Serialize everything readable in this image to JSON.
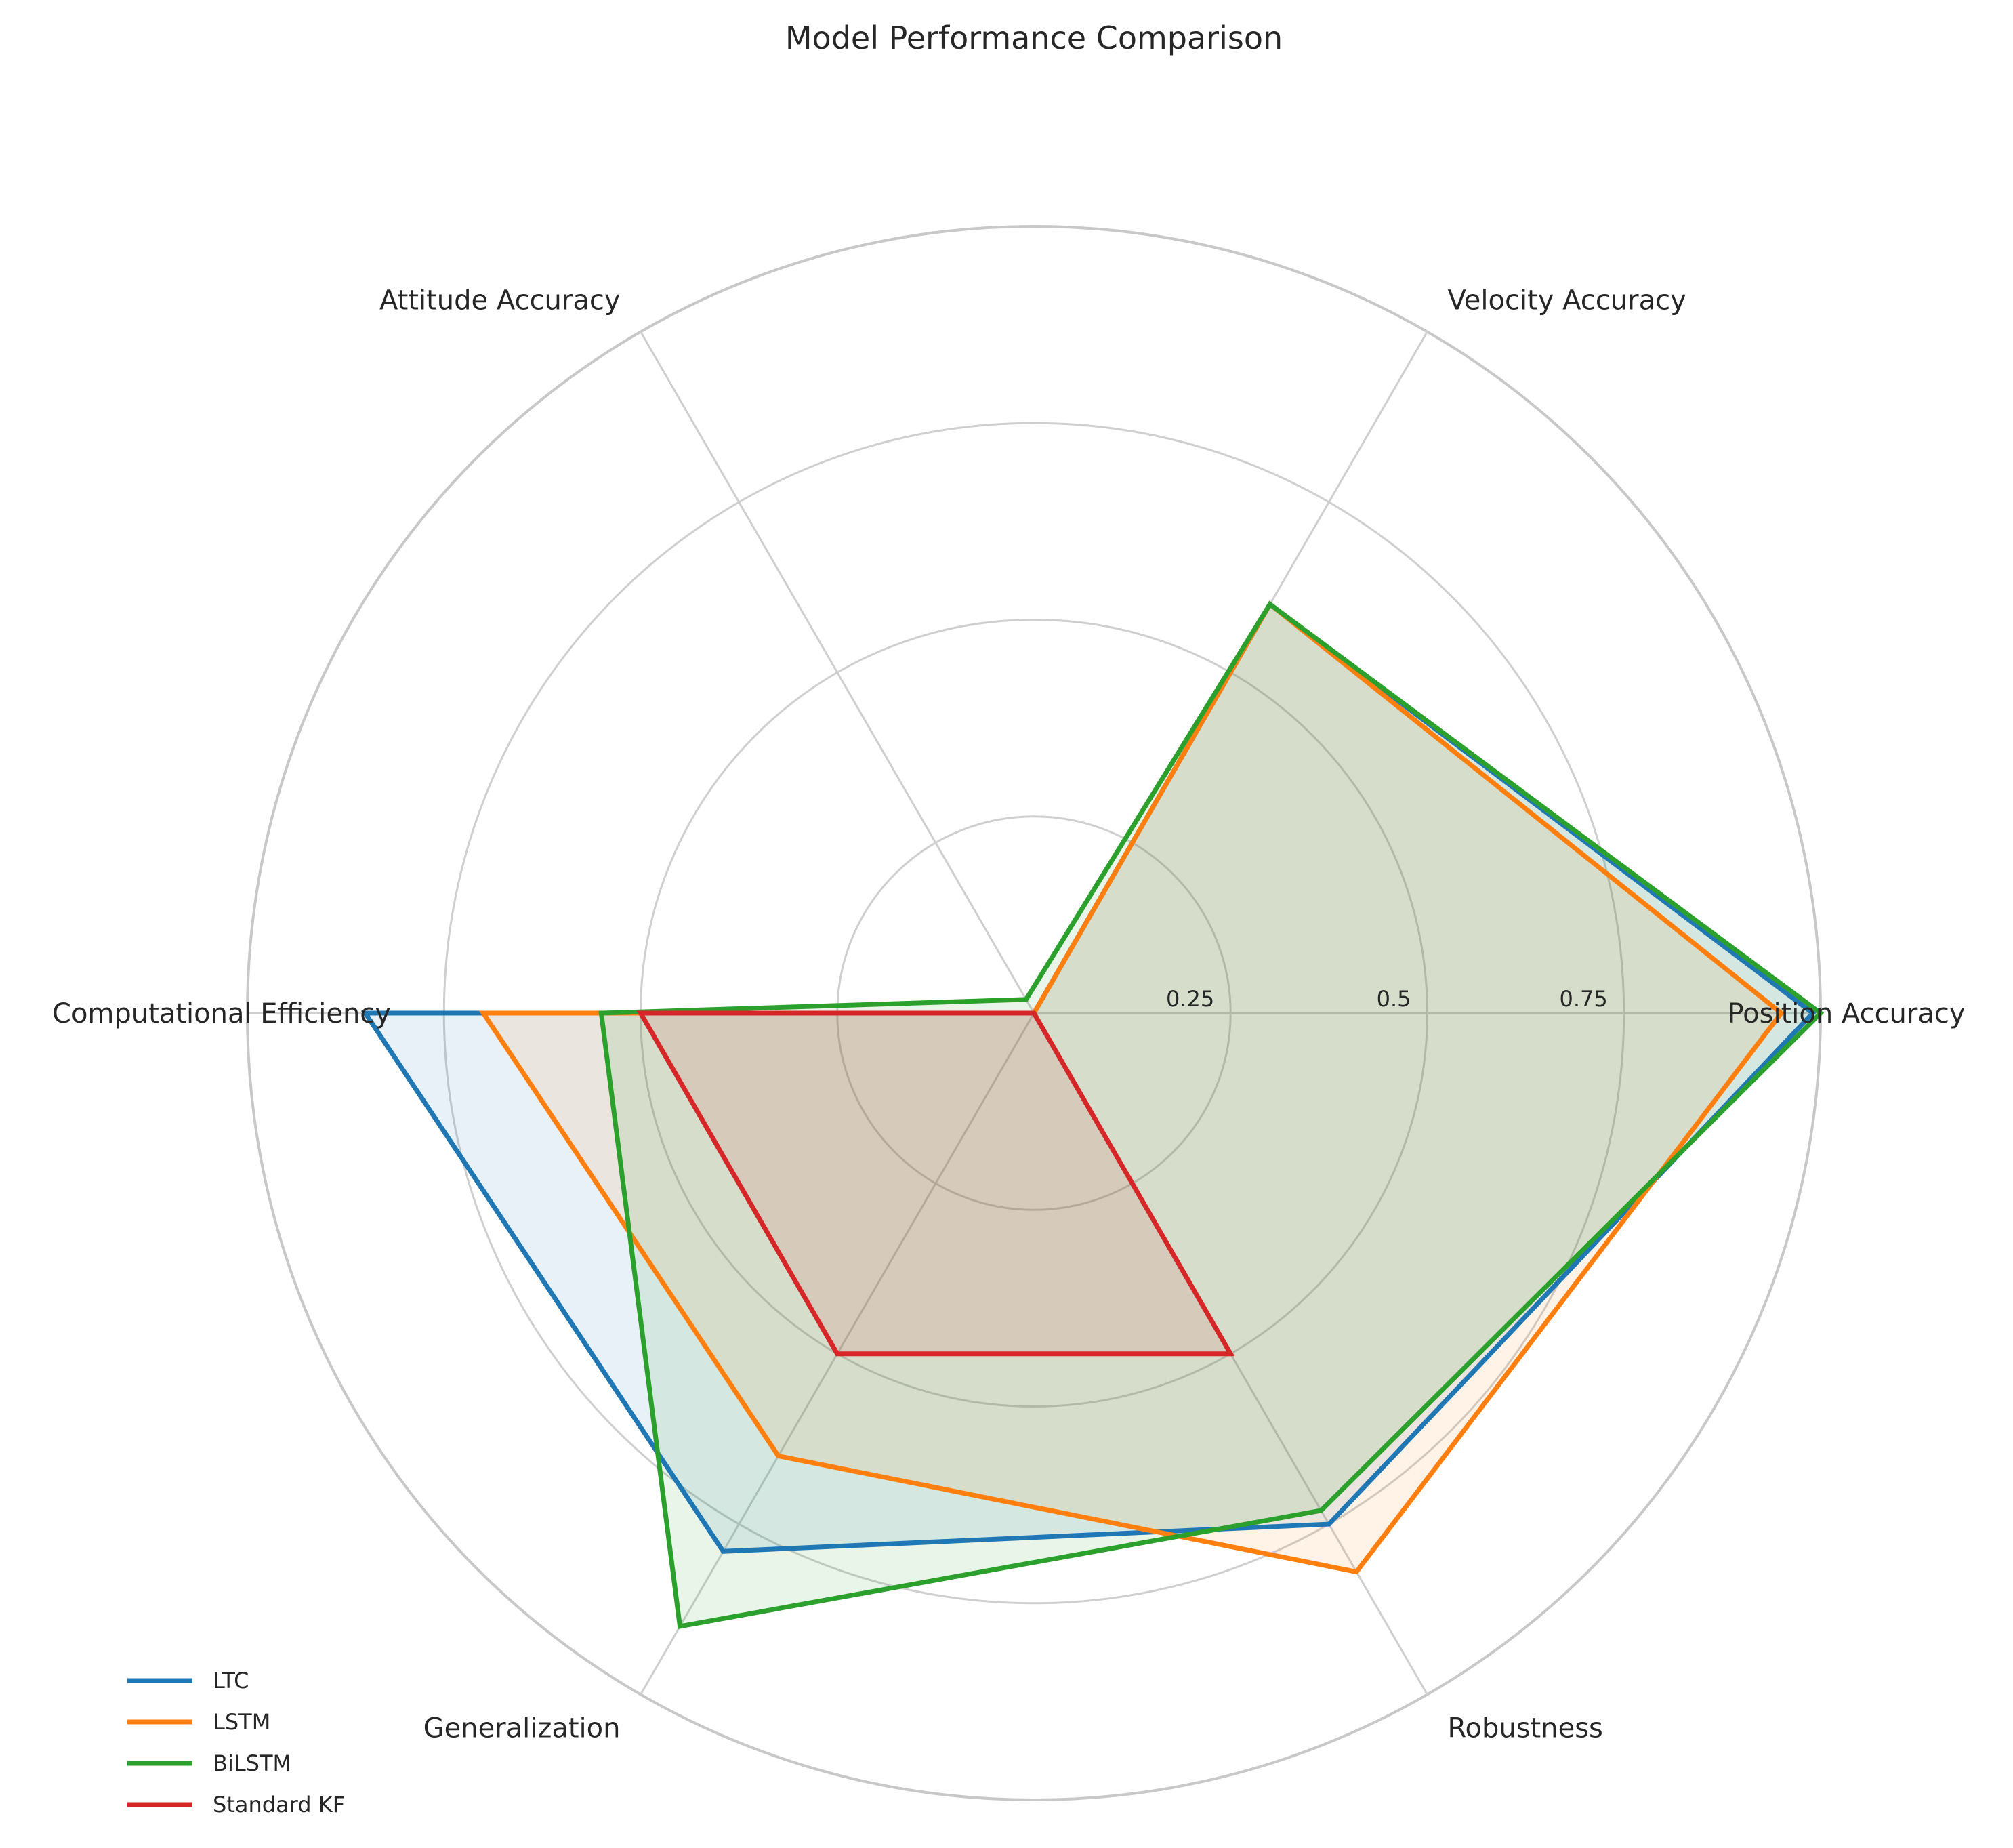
{
  "chart_data": {
    "type": "radar",
    "title": "Model Performance Comparison",
    "axes": [
      "Position Accuracy",
      "Velocity Accuracy",
      "Attitude Accuracy",
      "Computational Efficiency",
      "Generalization",
      "Robustness"
    ],
    "rlim": [
      0,
      1
    ],
    "r_ticks": [
      0.25,
      0.5,
      0.75
    ],
    "r_tick_labels": [
      "0.25",
      "0.5",
      "0.75"
    ],
    "grid": true,
    "legend_position": "lower-left",
    "series": [
      {
        "name": "LTC",
        "color": "#1f77b4",
        "values": [
          0.99,
          0.6,
          0.0,
          0.85,
          0.79,
          0.75
        ]
      },
      {
        "name": "LSTM",
        "color": "#ff7f0e",
        "values": [
          0.95,
          0.6,
          0.0,
          0.7,
          0.65,
          0.82
        ]
      },
      {
        "name": "BiLSTM",
        "color": "#2ca02c",
        "values": [
          1.0,
          0.6,
          0.02,
          0.55,
          0.9,
          0.73
        ]
      },
      {
        "name": "Standard KF",
        "color": "#d62728",
        "values": [
          0.0,
          0.0,
          0.0,
          0.5,
          0.5,
          0.5
        ]
      }
    ]
  }
}
